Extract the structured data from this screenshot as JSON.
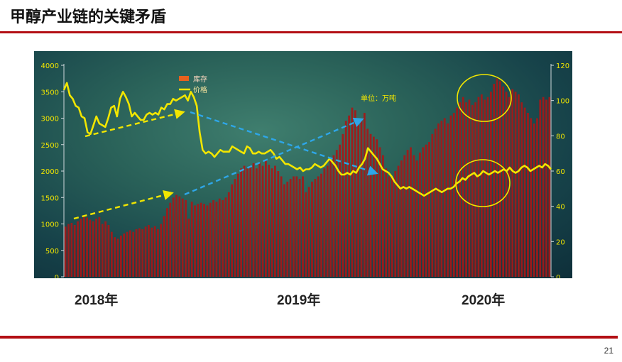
{
  "slide": {
    "title": "甲醇产业链的关键矛盾",
    "page_number": "21",
    "accent_color": "#b30f14"
  },
  "years": [
    "2018年",
    "2019年",
    "2020年"
  ],
  "chart_data": {
    "type": "bar+line",
    "unit_note": "单位：万吨",
    "legend": [
      {
        "name": "库存",
        "color": "#e8611e",
        "shape": "square"
      },
      {
        "name": "价格",
        "color": "#f2e600",
        "shape": "line"
      }
    ],
    "left_axis": {
      "ticks": [
        0,
        500,
        1000,
        1500,
        2000,
        2500,
        3000,
        3500,
        4000
      ],
      "range": [
        0,
        4000
      ]
    },
    "right_axis": {
      "ticks": [
        0,
        20,
        40,
        60,
        80,
        100,
        120
      ],
      "range": [
        0,
        120
      ]
    },
    "bar_color": "#a51818",
    "line_color": "#f2e600",
    "arrow_colors": {
      "yellow": "#f2e600",
      "blue": "#2ea6e8"
    },
    "inventory_left_axis": [
      950,
      1000,
      1020,
      980,
      1050,
      1100,
      1150,
      1120,
      1080,
      1050,
      1100,
      1130,
      1000,
      1050,
      980,
      850,
      750,
      720,
      780,
      820,
      850,
      880,
      850,
      900,
      920,
      900,
      950,
      980,
      930,
      960,
      900,
      1000,
      1150,
      1300,
      1400,
      1500,
      1550,
      1520,
      1480,
      1450,
      1100,
      1420,
      1350,
      1380,
      1400,
      1380,
      1350,
      1400,
      1450,
      1420,
      1480,
      1450,
      1500,
      1600,
      1750,
      1850,
      1950,
      2050,
      2100,
      2050,
      2100,
      2150,
      2050,
      2150,
      2100,
      2200,
      2120,
      2050,
      2100,
      2000,
      1900,
      1750,
      1800,
      1850,
      1900,
      1900,
      1850,
      1900,
      1600,
      1700,
      1800,
      1850,
      1900,
      1950,
      2050,
      2100,
      2200,
      2300,
      2400,
      2500,
      2700,
      2950,
      3050,
      3200,
      3150,
      2900,
      3000,
      3100,
      2800,
      2700,
      2650,
      2600,
      2450,
      2300,
      2050,
      1900,
      1900,
      2000,
      2100,
      2200,
      2300,
      2400,
      2450,
      2300,
      2200,
      2350,
      2450,
      2500,
      2550,
      2700,
      2800,
      2900,
      2950,
      3000,
      2900,
      3050,
      3100,
      3200,
      3300,
      3400,
      3300,
      3350,
      3250,
      3300,
      3400,
      3450,
      3350,
      3400,
      3500,
      3650,
      3750,
      3700,
      3600,
      3500,
      3400,
      3550,
      3500,
      3450,
      3300,
      3200,
      3100,
      3000,
      2900,
      3000,
      3350,
      3400,
      3350,
      3400
    ],
    "price_right_axis": [
      106,
      110,
      103,
      101,
      97,
      96,
      91,
      90,
      82,
      81,
      86,
      91,
      87,
      86,
      85,
      90,
      96,
      97,
      91,
      101,
      105,
      102,
      98,
      91,
      93,
      91,
      89,
      89,
      92,
      93,
      92,
      93,
      92,
      96,
      95,
      98,
      98,
      101,
      100,
      101,
      102,
      103,
      100,
      105,
      102,
      97,
      82,
      72,
      70,
      71,
      70,
      68,
      70,
      72,
      71,
      71,
      71,
      74,
      73,
      72,
      71,
      70,
      74,
      73,
      70,
      70,
      71,
      70,
      70,
      71,
      72,
      70,
      67,
      68,
      66,
      64,
      64,
      63,
      62,
      61,
      62,
      60,
      61,
      61,
      62,
      64,
      63,
      62,
      63,
      65,
      67,
      65,
      63,
      60,
      58,
      58,
      59,
      58,
      60,
      59,
      62,
      64,
      67,
      73,
      71,
      69,
      67,
      64,
      61,
      60,
      59,
      57,
      54,
      52,
      50,
      51,
      50,
      51,
      50,
      49,
      48,
      47,
      46,
      47,
      48,
      49,
      50,
      49,
      48,
      49,
      50,
      50,
      51,
      53,
      54,
      56,
      55,
      57,
      58,
      59,
      57,
      58,
      60,
      59,
      58,
      59,
      60,
      59,
      60,
      61,
      60,
      62,
      60,
      59,
      60,
      62,
      63,
      62,
      60,
      61,
      62,
      63,
      62,
      64,
      63,
      61
    ]
  }
}
